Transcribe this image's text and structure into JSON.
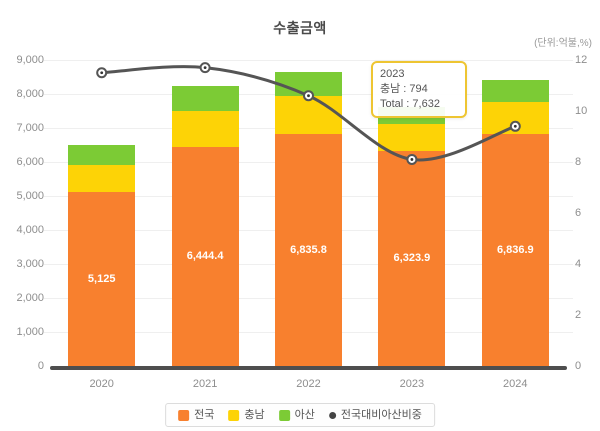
{
  "title": "수출금액",
  "unit_label": "(단위:억불,%)",
  "tooltip": {
    "title": "2023",
    "lines": [
      "충남 : 794",
      "Total : 7,632"
    ]
  },
  "colors": {
    "jeonguk_orange": "#f8802e",
    "chungnam_yellow": "#fdd306",
    "asan_green": "#7ccb35",
    "ratio_line": "#555555",
    "axis_baseline": "#4e4e4e",
    "gridline": "#efefef",
    "tick_text": "#8e8e8e",
    "tooltip_border": "#eec532"
  },
  "chart_data": {
    "type": "bar",
    "stacked": true,
    "title": "수출금액",
    "categories": [
      "2020",
      "2021",
      "2022",
      "2023",
      "2024"
    ],
    "series": [
      {
        "name": "전국",
        "color": "#f8802e",
        "values": [
          5125,
          6444.4,
          6835.8,
          6323.9,
          6836.9
        ]
      },
      {
        "name": "충남",
        "color": "#fdd306",
        "values": [
          775,
          1045,
          1115,
          794,
          930
        ]
      },
      {
        "name": "아산",
        "color": "#7ccb35",
        "values": [
          600,
          750,
          700,
          514.1,
          655
        ]
      }
    ],
    "bar_labels": [
      "5,125",
      "6,444.4",
      "6,835.8",
      "6,323.9",
      "6,836.9"
    ],
    "line_series": {
      "name": "전국대비아산비중",
      "color": "#555555",
      "axis": "right",
      "values": [
        11.5,
        11.7,
        10.6,
        8.1,
        9.4
      ]
    },
    "left_axis": {
      "min": 0,
      "max": 9000,
      "step": 1000,
      "ticks": [
        "0",
        "1,000",
        "2,000",
        "3,000",
        "4,000",
        "5,000",
        "6,000",
        "7,000",
        "8,000",
        "9,000"
      ]
    },
    "right_axis": {
      "min": 0,
      "max": 12,
      "step": 2,
      "ticks": [
        "0",
        "2",
        "4",
        "6",
        "8",
        "10",
        "12"
      ]
    },
    "legend_position": "bottom",
    "grid": true
  }
}
